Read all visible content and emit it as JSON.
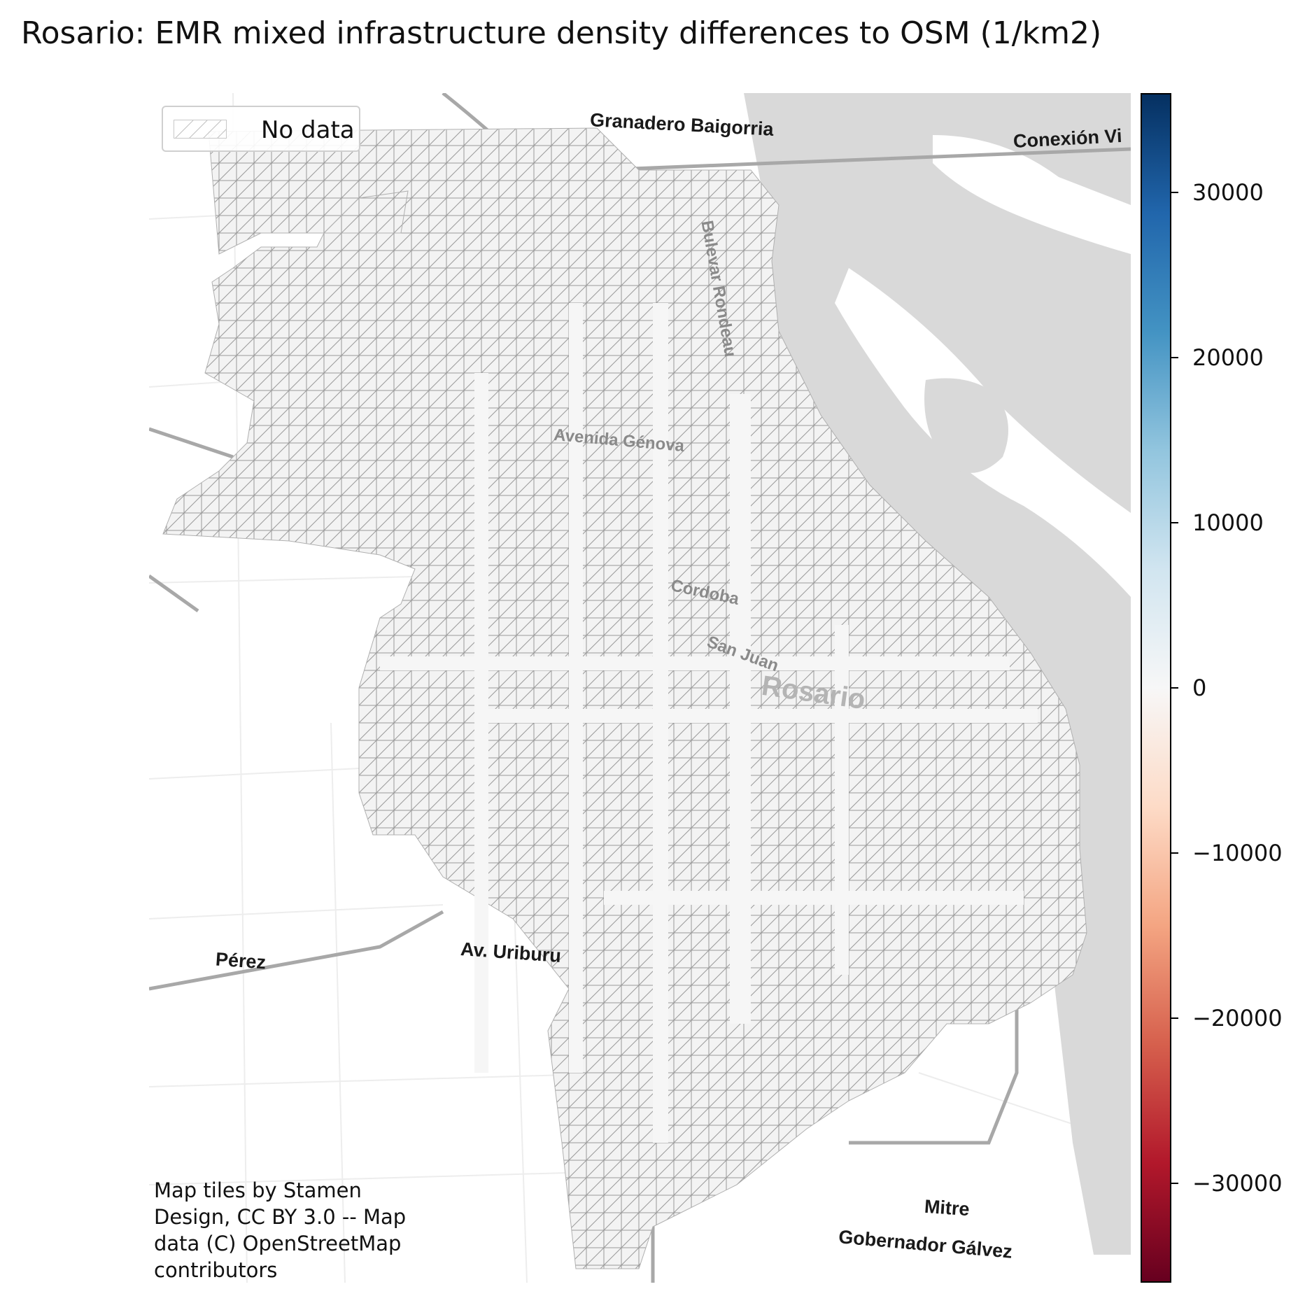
{
  "title": "Rosario: EMR mixed infrastructure density differences to OSM (1/km2)",
  "legend": {
    "entries": [
      {
        "label": "No data",
        "pattern": "hatched"
      }
    ]
  },
  "map": {
    "place_labels": [
      "Granadero Baigorria",
      "Conexión Vi",
      "Pérez",
      "Av. Uriburu",
      "Mitre",
      "Gobernador Gálvez"
    ],
    "street_labels": [
      "Bulevar Rondeau",
      "Avenida Génova",
      "Córdoba",
      "San Juan"
    ],
    "city_label": "Rosario",
    "attribution": "Map tiles by Stamen\nDesign, CC BY 3.0 -- Map\ndata (C) OpenStreetMap\ncontributors"
  },
  "colorbar": {
    "colormap": "RdBu",
    "range": [
      -36000,
      36000
    ],
    "ticks": [
      30000,
      20000,
      10000,
      0,
      -10000,
      -20000,
      -30000
    ],
    "tick_labels": [
      "30000",
      "20000",
      "10000",
      "0",
      "−10000",
      "−20000",
      "−30000"
    ],
    "colors": [
      "#67001f",
      "#b2182b",
      "#d6604d",
      "#f4a582",
      "#fddbc7",
      "#f7f7f7",
      "#d1e5f0",
      "#92c5de",
      "#4393c3",
      "#2166ac",
      "#053061"
    ]
  }
}
